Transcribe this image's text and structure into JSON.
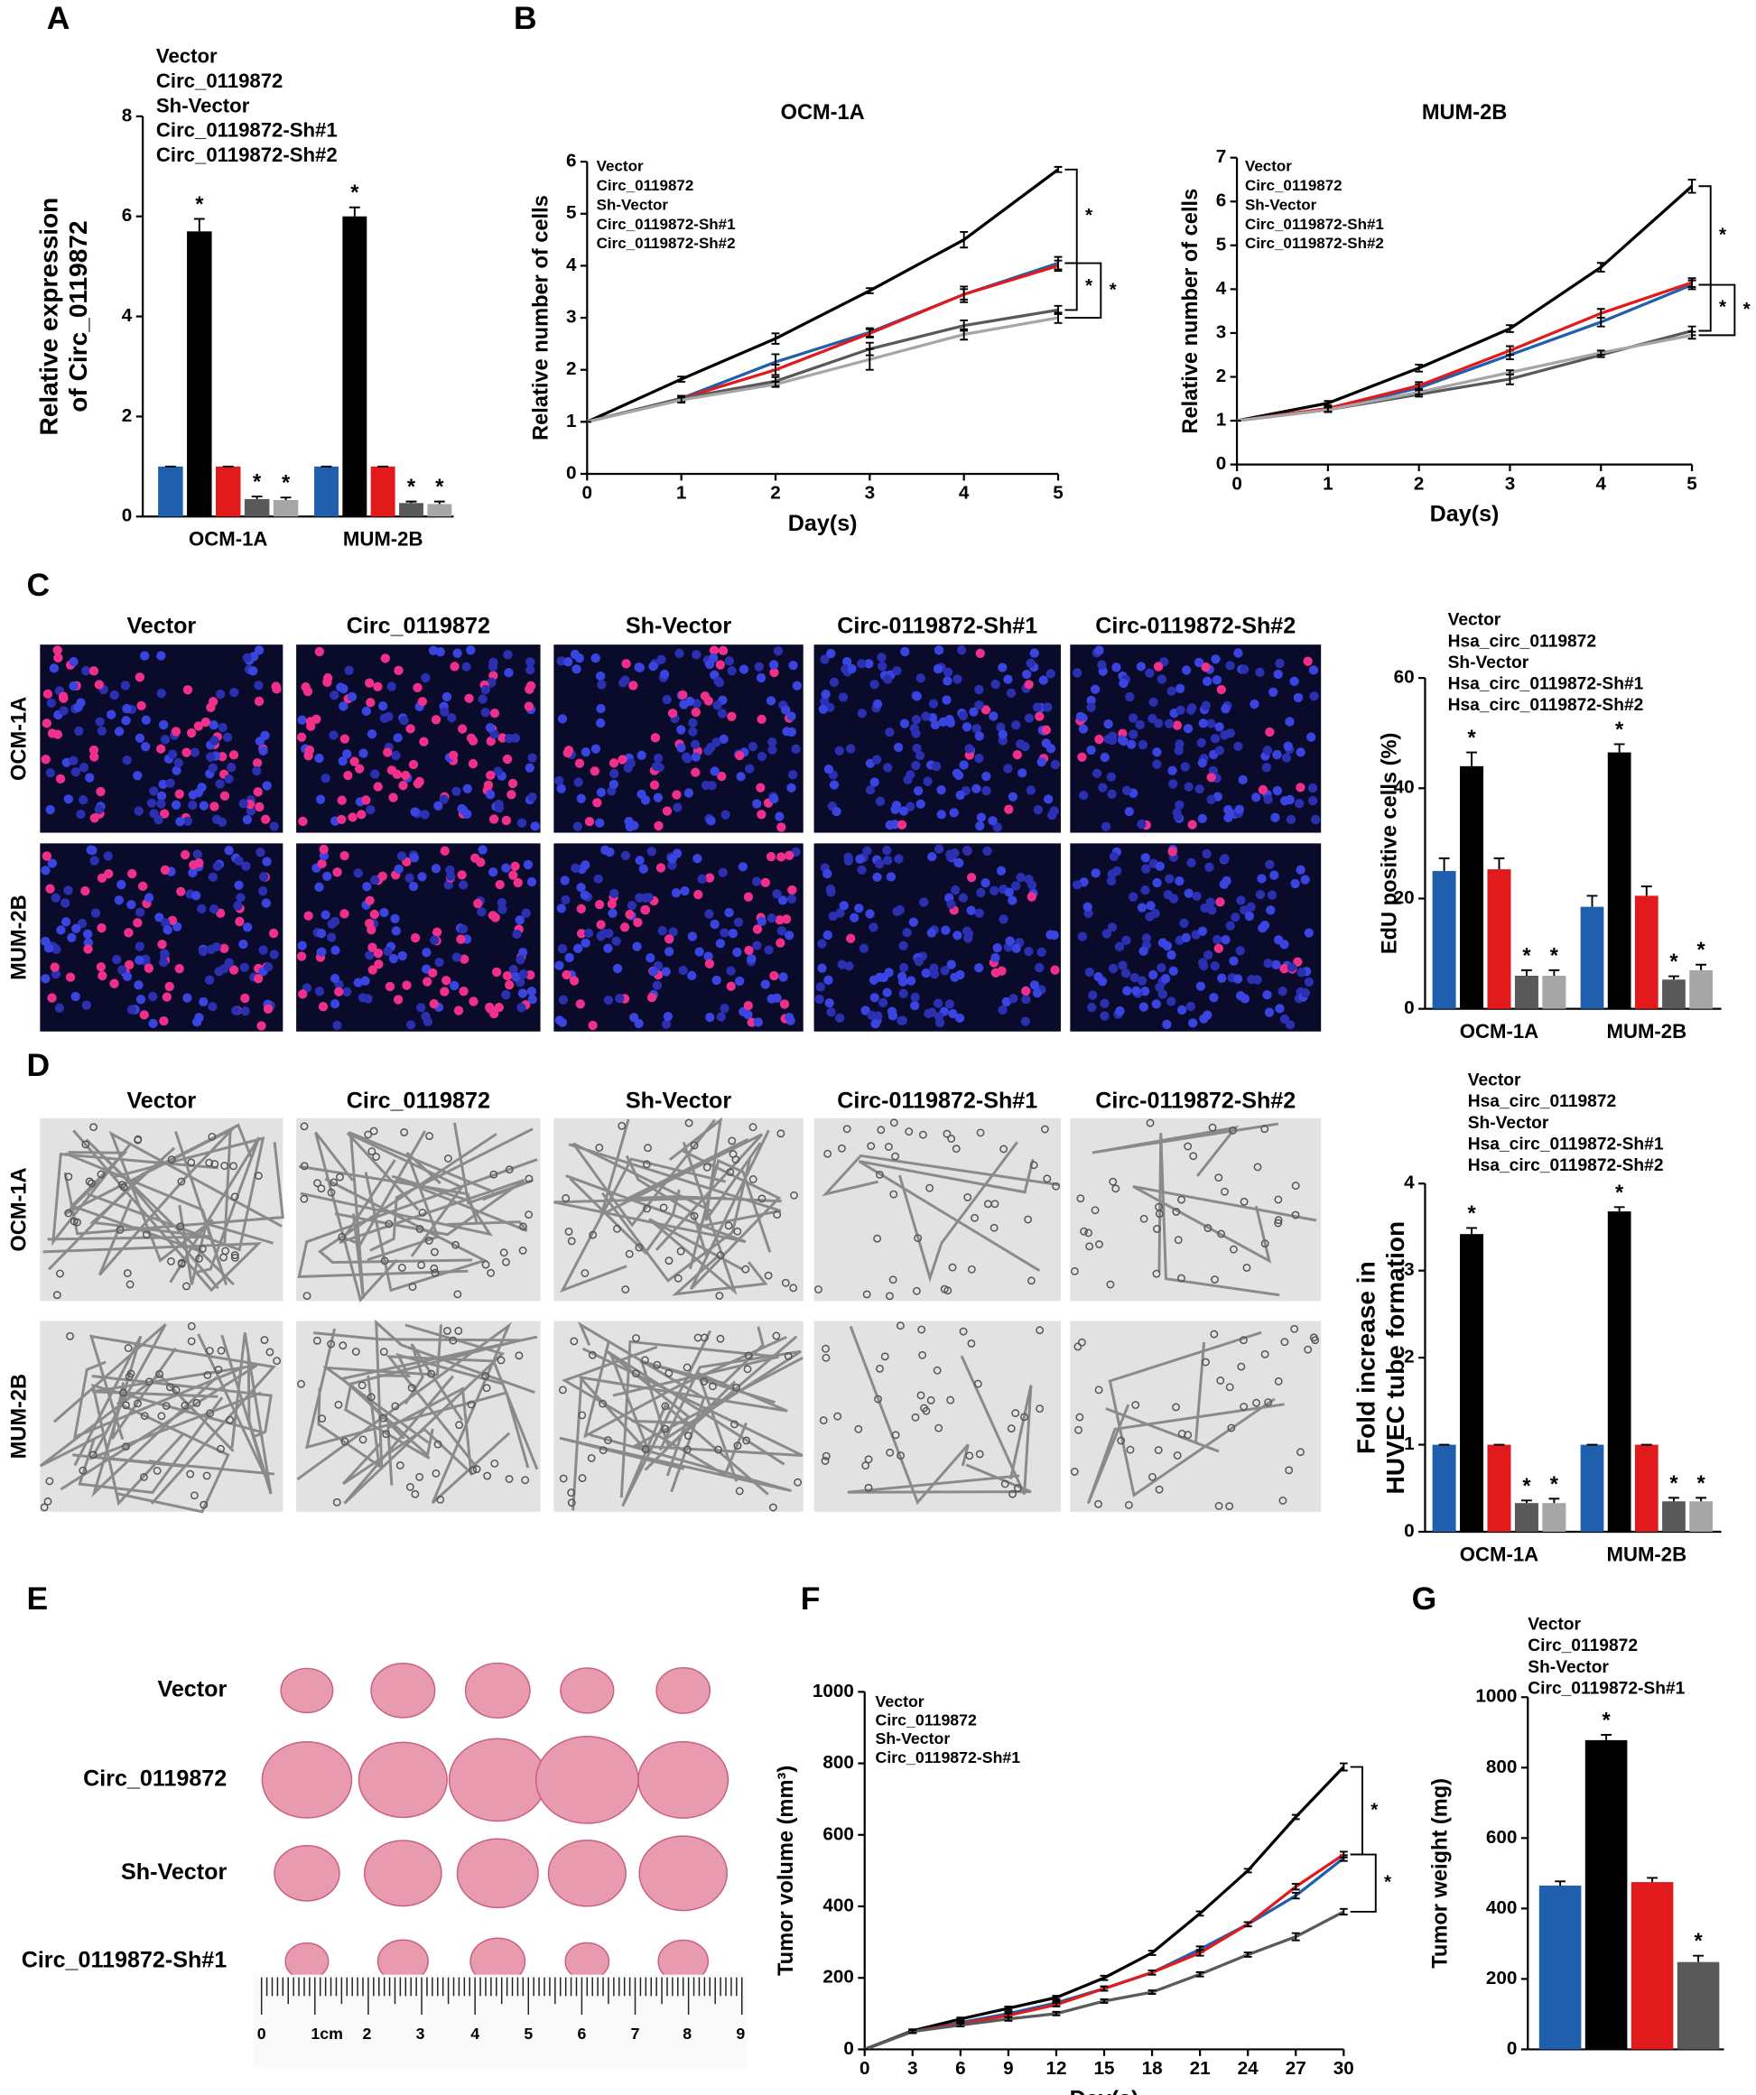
{
  "panel_labels": [
    "A",
    "B",
    "C",
    "D",
    "E",
    "F",
    "G"
  ],
  "edu_images": {
    "columns": [
      "Vector",
      "Circ_0119872",
      "Sh-Vector",
      "Circ-0119872-Sh#1",
      "Circ-0119872-Sh#2"
    ],
    "rows": [
      "OCM-1A",
      "MUM-2B"
    ]
  },
  "tube_images": {
    "columns": [
      "Vector",
      "Circ_0119872",
      "Sh-Vector",
      "Circ-0119872-Sh#1",
      "Circ-0119872-Sh#2"
    ],
    "rows": [
      "OCM-1A",
      "MUM-2B"
    ]
  },
  "tumor_photo": {
    "rows": [
      "Vector",
      "Circ_0119872",
      "Sh-Vector",
      "Circ_0119872-Sh#1"
    ],
    "ruler_labels": [
      "0",
      "1cm",
      "2",
      "3",
      "4",
      "5",
      "6",
      "7",
      "8",
      "9"
    ]
  },
  "chart_data": [
    {
      "type": "bar",
      "ylabel": [
        "Relative expression",
        "of Circ_0119872"
      ],
      "categories": [
        "OCM-1A",
        "MUM-2B"
      ],
      "ylim": [
        0,
        8
      ],
      "yticks": [
        0,
        2,
        4,
        6,
        8
      ],
      "series": [
        {
          "name": "Vector",
          "color": "#1f5fad",
          "values": [
            1.0,
            1.0
          ],
          "errors": [
            0,
            0
          ]
        },
        {
          "name": "Circ_0119872",
          "color": "#000000",
          "values": [
            5.7,
            6.0
          ],
          "errors": [
            0.25,
            0.18
          ],
          "sig": [
            "*",
            "*"
          ]
        },
        {
          "name": "Sh-Vector",
          "color": "#e31a1c",
          "values": [
            1.0,
            1.0
          ],
          "errors": [
            0,
            0
          ]
        },
        {
          "name": "Circ_0119872-Sh#1",
          "color": "#595959",
          "values": [
            0.35,
            0.27
          ],
          "errors": [
            0.05,
            0.03
          ],
          "sig": [
            "*",
            "*"
          ]
        },
        {
          "name": "Circ_0119872-Sh#2",
          "color": "#a6a6a6",
          "values": [
            0.33,
            0.25
          ],
          "errors": [
            0.05,
            0.05
          ],
          "sig": [
            "*",
            "*"
          ]
        }
      ]
    },
    {
      "type": "line",
      "title": "OCM-1A",
      "xlabel": "Day(s)",
      "ylabel": "Relative number of cells",
      "x": [
        0,
        1,
        2,
        3,
        4,
        5
      ],
      "xlim": [
        0,
        5
      ],
      "xticks": [
        0,
        1,
        2,
        3,
        4,
        5
      ],
      "ylim": [
        0,
        6
      ],
      "yticks": [
        0,
        1,
        2,
        3,
        4,
        5,
        6
      ],
      "significance": [
        "*",
        "*",
        "*"
      ],
      "series": [
        {
          "name": "Vector",
          "color": "#1f5fad",
          "values": [
            1,
            1.45,
            2.15,
            2.72,
            3.45,
            4.05
          ],
          "errors": [
            0,
            0.05,
            0.15,
            0.08,
            0.15,
            0.12
          ]
        },
        {
          "name": "Circ_0119872",
          "color": "#000000",
          "values": [
            1,
            1.82,
            2.6,
            3.52,
            4.5,
            5.85
          ],
          "errors": [
            0,
            0.05,
            0.1,
            0.05,
            0.15,
            0.05
          ]
        },
        {
          "name": "Sh-Vector",
          "color": "#e31a1c",
          "values": [
            1,
            1.45,
            2.0,
            2.7,
            3.45,
            4.0
          ],
          "errors": [
            0,
            0.05,
            0.1,
            0.08,
            0.1,
            0.1
          ]
        },
        {
          "name": "Circ_0119872-Sh#1",
          "color": "#595959",
          "values": [
            1,
            1.45,
            1.78,
            2.4,
            2.85,
            3.15
          ],
          "errors": [
            0,
            0.05,
            0.08,
            0.12,
            0.1,
            0.08
          ]
        },
        {
          "name": "Circ_0119872-Sh#2",
          "color": "#a6a6a6",
          "values": [
            1,
            1.42,
            1.72,
            2.2,
            2.68,
            3.0
          ],
          "errors": [
            0,
            0.05,
            0.05,
            0.2,
            0.1,
            0.1
          ]
        }
      ]
    },
    {
      "type": "line",
      "title": "MUM-2B",
      "xlabel": "Day(s)",
      "ylabel": "Relative number of cells",
      "x": [
        0,
        1,
        2,
        3,
        4,
        5
      ],
      "xlim": [
        0,
        5
      ],
      "xticks": [
        0,
        1,
        2,
        3,
        4,
        5
      ],
      "ylim": [
        0,
        7
      ],
      "yticks": [
        0,
        1,
        2,
        3,
        4,
        5,
        6,
        7
      ],
      "significance": [
        "*",
        "*",
        "*"
      ],
      "series": [
        {
          "name": "Vector",
          "color": "#1f5fad",
          "values": [
            1,
            1.25,
            1.75,
            2.5,
            3.25,
            4.1
          ],
          "errors": [
            0,
            0.05,
            0.08,
            0.1,
            0.1,
            0.1
          ]
        },
        {
          "name": "Circ_0119872",
          "color": "#000000",
          "values": [
            1,
            1.4,
            2.2,
            3.1,
            4.5,
            6.35
          ],
          "errors": [
            0,
            0.05,
            0.08,
            0.08,
            0.1,
            0.15
          ]
        },
        {
          "name": "Sh-Vector",
          "color": "#e31a1c",
          "values": [
            1,
            1.28,
            1.8,
            2.6,
            3.45,
            4.15
          ],
          "errors": [
            0,
            0.05,
            0.08,
            0.1,
            0.1,
            0.1
          ]
        },
        {
          "name": "Circ_0119872-Sh#1",
          "color": "#595959",
          "values": [
            1,
            1.25,
            1.6,
            1.95,
            2.5,
            3.05
          ],
          "errors": [
            0,
            0.05,
            0.05,
            0.12,
            0.05,
            0.1
          ]
        },
        {
          "name": "Circ_0119872-Sh#2",
          "color": "#a6a6a6",
          "values": [
            1,
            1.25,
            1.65,
            2.1,
            2.55,
            2.95
          ],
          "errors": [
            0,
            0.05,
            0.05,
            0.05,
            0.05,
            0.08
          ]
        }
      ]
    },
    {
      "type": "bar",
      "ylabel": "EdU positive cells (%)",
      "categories": [
        "OCM-1A",
        "MUM-2B"
      ],
      "ylim": [
        0,
        60
      ],
      "yticks": [
        0,
        20,
        40,
        60
      ],
      "series": [
        {
          "name": "Vector",
          "color": "#1f5fad",
          "values": [
            25,
            18.5
          ],
          "errors": [
            2.3,
            2
          ]
        },
        {
          "name": "Hsa_circ_0119872",
          "color": "#000000",
          "values": [
            44,
            46.5
          ],
          "errors": [
            2.5,
            1.5
          ],
          "sig": [
            "*",
            "*"
          ]
        },
        {
          "name": "Sh-Vector",
          "color": "#e31a1c",
          "values": [
            25.3,
            20.5
          ],
          "errors": [
            2,
            1.7
          ]
        },
        {
          "name": "Hsa_circ_0119872-Sh#1",
          "color": "#595959",
          "values": [
            6,
            5.3
          ],
          "errors": [
            1,
            0.6
          ],
          "sig": [
            "*",
            "*"
          ]
        },
        {
          "name": "Hsa_circ_0119872-Sh#2",
          "color": "#a6a6a6",
          "values": [
            6,
            7
          ],
          "errors": [
            1,
            1
          ],
          "sig": [
            "*",
            "*"
          ]
        }
      ]
    },
    {
      "type": "bar",
      "ylabel": [
        "Fold increase in",
        "HUVEC tube formation"
      ],
      "categories": [
        "OCM-1A",
        "MUM-2B"
      ],
      "ylim": [
        0,
        4
      ],
      "yticks": [
        0,
        1,
        2,
        3,
        4
      ],
      "series": [
        {
          "name": "Vector",
          "color": "#1f5fad",
          "values": [
            1,
            1
          ],
          "errors": [
            0,
            0
          ]
        },
        {
          "name": "Hsa_circ_0119872",
          "color": "#000000",
          "values": [
            3.42,
            3.68
          ],
          "errors": [
            0.07,
            0.05
          ],
          "sig": [
            "*",
            "*"
          ]
        },
        {
          "name": "Sh-Vector",
          "color": "#e31a1c",
          "values": [
            1,
            1
          ],
          "errors": [
            0,
            0
          ]
        },
        {
          "name": "Hsa_circ_0119872-Sh#1",
          "color": "#595959",
          "values": [
            0.33,
            0.35
          ],
          "errors": [
            0.03,
            0.04
          ],
          "sig": [
            "*",
            "*"
          ]
        },
        {
          "name": "Hsa_circ_0119872-Sh#2",
          "color": "#a6a6a6",
          "values": [
            0.33,
            0.35
          ],
          "errors": [
            0.05,
            0.04
          ],
          "sig": [
            "*",
            "*"
          ]
        }
      ]
    },
    {
      "type": "line",
      "xlabel": "Day(s)",
      "ylabel": "Tumor volume (mm³)",
      "x": [
        0,
        3,
        6,
        9,
        12,
        15,
        18,
        21,
        24,
        27,
        30
      ],
      "xlim": [
        0,
        30
      ],
      "xticks": [
        0,
        3,
        6,
        9,
        12,
        15,
        18,
        21,
        24,
        27,
        30
      ],
      "ylim": [
        0,
        1000
      ],
      "yticks": [
        0,
        200,
        400,
        600,
        800,
        1000
      ],
      "significance": [
        "*",
        "*"
      ],
      "series": [
        {
          "name": "Vector",
          "color": "#1f5fad",
          "values": [
            0,
            50,
            75,
            100,
            130,
            170,
            215,
            280,
            350,
            430,
            535
          ],
          "errors": [
            0,
            4,
            4,
            5,
            5,
            6,
            6,
            8,
            6,
            8,
            8
          ]
        },
        {
          "name": "Circ_0119872",
          "color": "#000000",
          "values": [
            0,
            52,
            85,
            115,
            145,
            200,
            270,
            380,
            500,
            650,
            790
          ],
          "errors": [
            0,
            4,
            4,
            5,
            5,
            6,
            6,
            6,
            5,
            6,
            10
          ]
        },
        {
          "name": "Sh-Vector",
          "color": "#e31a1c",
          "values": [
            0,
            50,
            72,
            95,
            125,
            170,
            215,
            270,
            350,
            455,
            545
          ],
          "errors": [
            0,
            4,
            4,
            5,
            5,
            6,
            6,
            8,
            6,
            8,
            8
          ]
        },
        {
          "name": "Circ_0119872-Sh#1",
          "color": "#595959",
          "values": [
            0,
            50,
            68,
            85,
            100,
            135,
            160,
            210,
            265,
            315,
            385
          ],
          "errors": [
            0,
            4,
            4,
            5,
            5,
            5,
            5,
            6,
            6,
            10,
            8
          ]
        }
      ]
    },
    {
      "type": "bar",
      "ylabel": "Tumor weight (mg)",
      "categories": [
        null
      ],
      "ylim": [
        0,
        1000
      ],
      "yticks": [
        0,
        200,
        400,
        600,
        800,
        1000
      ],
      "series": [
        {
          "name": "Vector",
          "color": "#1f5fad",
          "values": [
            465
          ],
          "errors": [
            12
          ]
        },
        {
          "name": "Circ_0119872",
          "color": "#000000",
          "values": [
            878
          ],
          "errors": [
            15
          ],
          "sig": [
            "*"
          ]
        },
        {
          "name": "Sh-Vector",
          "color": "#e31a1c",
          "values": [
            475
          ],
          "errors": [
            12
          ]
        },
        {
          "name": "Circ_0119872-Sh#1",
          "color": "#595959",
          "values": [
            248
          ],
          "errors": [
            18
          ],
          "sig": [
            "*"
          ]
        }
      ]
    }
  ]
}
